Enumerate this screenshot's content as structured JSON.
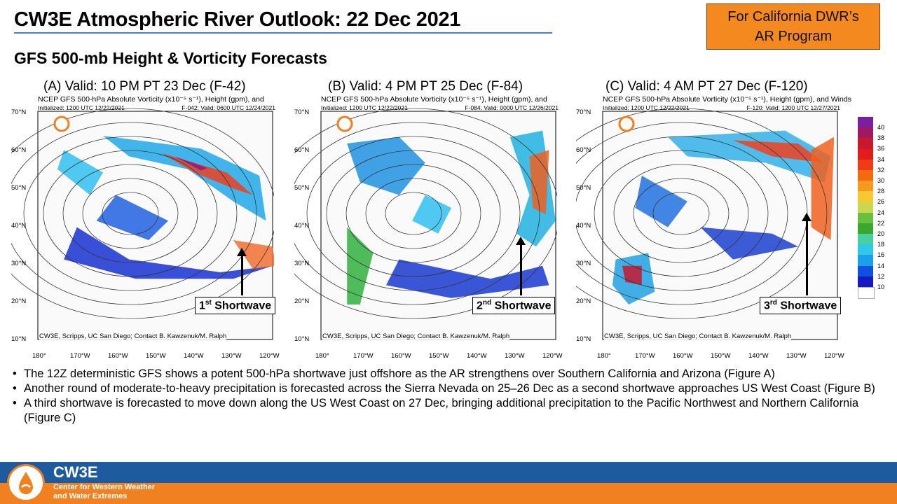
{
  "header": {
    "title": "CW3E Atmospheric River Outlook: 22 Dec 2021",
    "subtitle": "GFS 500-mb Height & Vorticity Forecasts",
    "badge_line1": "For California DWR’s",
    "badge_line2": "AR Program"
  },
  "panels": [
    {
      "label": "(A) Valid:  10 PM PT 23 Dec (F-42)",
      "header": "NCEP GFS 500-hPa Absolute Vorticity (x10⁻⁵ s⁻¹), Height (gpm), and",
      "init": "Initialized: 1200 UTC 12/22/2021",
      "valid": "F-042: Valid: 0600 UTC 12/24/2021",
      "credit": "CW3E, Scripps, UC San Diego; Contact B. Kawzenuk/M. Ralph",
      "callout_ord": "1",
      "callout_sup": "st",
      "callout_text": " Shortwave"
    },
    {
      "label": "(B) Valid:  4 PM PT 25 Dec (F-84)",
      "header": "NCEP GFS 500-hPa Absolute Vorticity (x10⁻⁵ s⁻¹), Height (gpm), and",
      "init": "Initialized: 1200 UTC 12/22/2021",
      "valid": "F-084: Valid: 0000 UTC 12/26/2021",
      "credit": "CW3E, Scripps, UC San Diego; Contact B. Kawzenuk/M. Ralph",
      "callout_ord": "2",
      "callout_sup": "nd",
      "callout_text": " Shortwave"
    },
    {
      "label": "(C) Valid:  4 AM PT 27 Dec (F-120)",
      "header": "NCEP GFS 500-hPa Absolute Vorticity (x10⁻⁵ s⁻¹), Height (gpm), and Winds",
      "init": "Initialized: 1200 UTC 12/22/2021",
      "valid": "F-120: Valid: 1200 UTC 12/27/2021",
      "credit": "CW3E, Scripps, UC San Diego; Contact B. Kawzenuk/M. Ralph",
      "callout_ord": "3",
      "callout_sup": "rd",
      "callout_text": " Shortwave"
    }
  ],
  "axes": {
    "lat": [
      "70°N",
      "60°N",
      "50°N",
      "40°N",
      "30°N",
      "20°N",
      "10°N"
    ],
    "lon": [
      "180°",
      "170°W",
      "160°W",
      "150°W",
      "140°W",
      "130°W",
      "120°W"
    ]
  },
  "legend": {
    "labels": [
      "40",
      "38",
      "36",
      "34",
      "32",
      "30",
      "28",
      "26",
      "24",
      "22",
      "20",
      "18",
      "16",
      "14",
      "12",
      "10"
    ],
    "colors": [
      "#7a1fa0",
      "#a01860",
      "#c81830",
      "#e01c1c",
      "#f03c14",
      "#f46a10",
      "#f89820",
      "#f8c830",
      "#c8d850",
      "#68c040",
      "#38a830",
      "#48d0a0",
      "#30c8e8",
      "#18a0e8",
      "#1050e0",
      "#1818c0",
      "#ffffff"
    ]
  },
  "bullets": [
    "The 12Z deterministic GFS shows a potent 500-hPa shortwave just offshore as the AR strengthens over Southern California and Arizona (Figure A)",
    "Another round of moderate-to-heavy  precipitation  is forecasted across the Sierra Nevada on 25–26 Dec as a second shortwave approaches US West Coast (Figure B)",
    "A third shortwave  is forecasted to move down along the US West Coast on 27 Dec, bringing additional  precipitation to the Pacific Northwest and Northern California  (Figure C)"
  ],
  "footer": {
    "name": "CW3E",
    "line1": "Center for Western Weather",
    "line2": "and Water Extremes"
  }
}
